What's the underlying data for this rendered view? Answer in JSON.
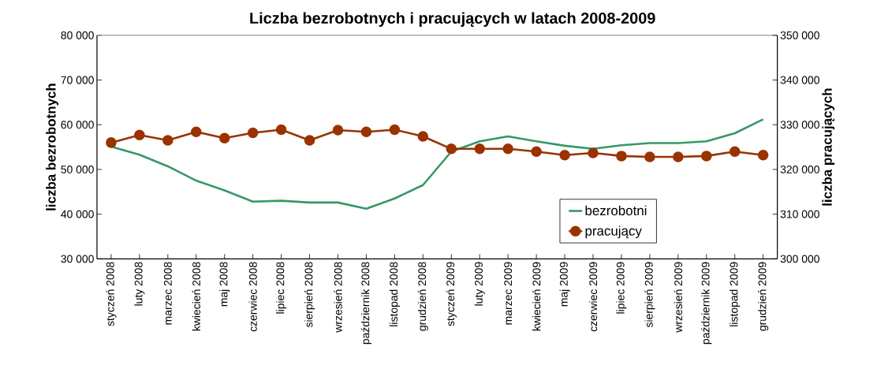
{
  "chart_data": {
    "type": "line",
    "title": "Liczba bezrobotnych i pracujących w latach 2008-2009",
    "ylabel": "liczba bezrobotnych",
    "y2label": "liczba pracujących",
    "categories": [
      "styczeń 2008",
      "luty 2008",
      "marzec 2008",
      "kwiecień 2008",
      "maj 2008",
      "czerwiec 2008",
      "lipiec 2008",
      "sierpień 2008",
      "wrzesień 2008",
      "październik 2008",
      "listopad 2008",
      "grudzień 2008",
      "styczeń 2009",
      "luty 2009",
      "marzec 2009",
      "kwiecień 2009",
      "maj 2009",
      "czerwiec 2009",
      "lipiec 2009",
      "sierpień 2009",
      "wrzesień 2009",
      "październik 2009",
      "listopad 2009",
      "grudzień 2009"
    ],
    "series": [
      {
        "name": "bezrobotni",
        "color": "#339966",
        "marker": "none",
        "values": [
          55100,
          53300,
          50700,
          47500,
          45300,
          42800,
          43000,
          42600,
          42600,
          41200,
          43500,
          46500,
          54000,
          56300,
          57400,
          56300,
          55300,
          54600,
          55400,
          55900,
          55900,
          56300,
          58100,
          61200
        ]
      },
      {
        "name": "pracujący",
        "color": "#993300",
        "marker": "circle",
        "axis": "y2",
        "values": [
          326000,
          327700,
          326500,
          328400,
          327000,
          328200,
          328900,
          326500,
          328800,
          328400,
          328900,
          327400,
          324600,
          324600,
          324600,
          324000,
          323200,
          323700,
          323000,
          322800,
          322800,
          323000,
          324000,
          323200
        ]
      }
    ],
    "ylim": [
      30000,
      80000
    ],
    "yticks": [
      {
        "value": 30000,
        "label": "30 000"
      },
      {
        "value": 40000,
        "label": "40 000"
      },
      {
        "value": 50000,
        "label": "50 000"
      },
      {
        "value": 60000,
        "label": "60 000"
      },
      {
        "value": 70000,
        "label": "70 000"
      },
      {
        "value": 80000,
        "label": "80 000"
      }
    ],
    "y2lim": [
      300000,
      350000
    ],
    "y2ticks": [
      {
        "value": 300000,
        "label": "300 000"
      },
      {
        "value": 310000,
        "label": "310 000"
      },
      {
        "value": 320000,
        "label": "320 000"
      },
      {
        "value": 330000,
        "label": "330 000"
      },
      {
        "value": 340000,
        "label": "340 000"
      },
      {
        "value": 350000,
        "label": "350 000"
      }
    ],
    "grid": false,
    "legend": "bottom right"
  }
}
